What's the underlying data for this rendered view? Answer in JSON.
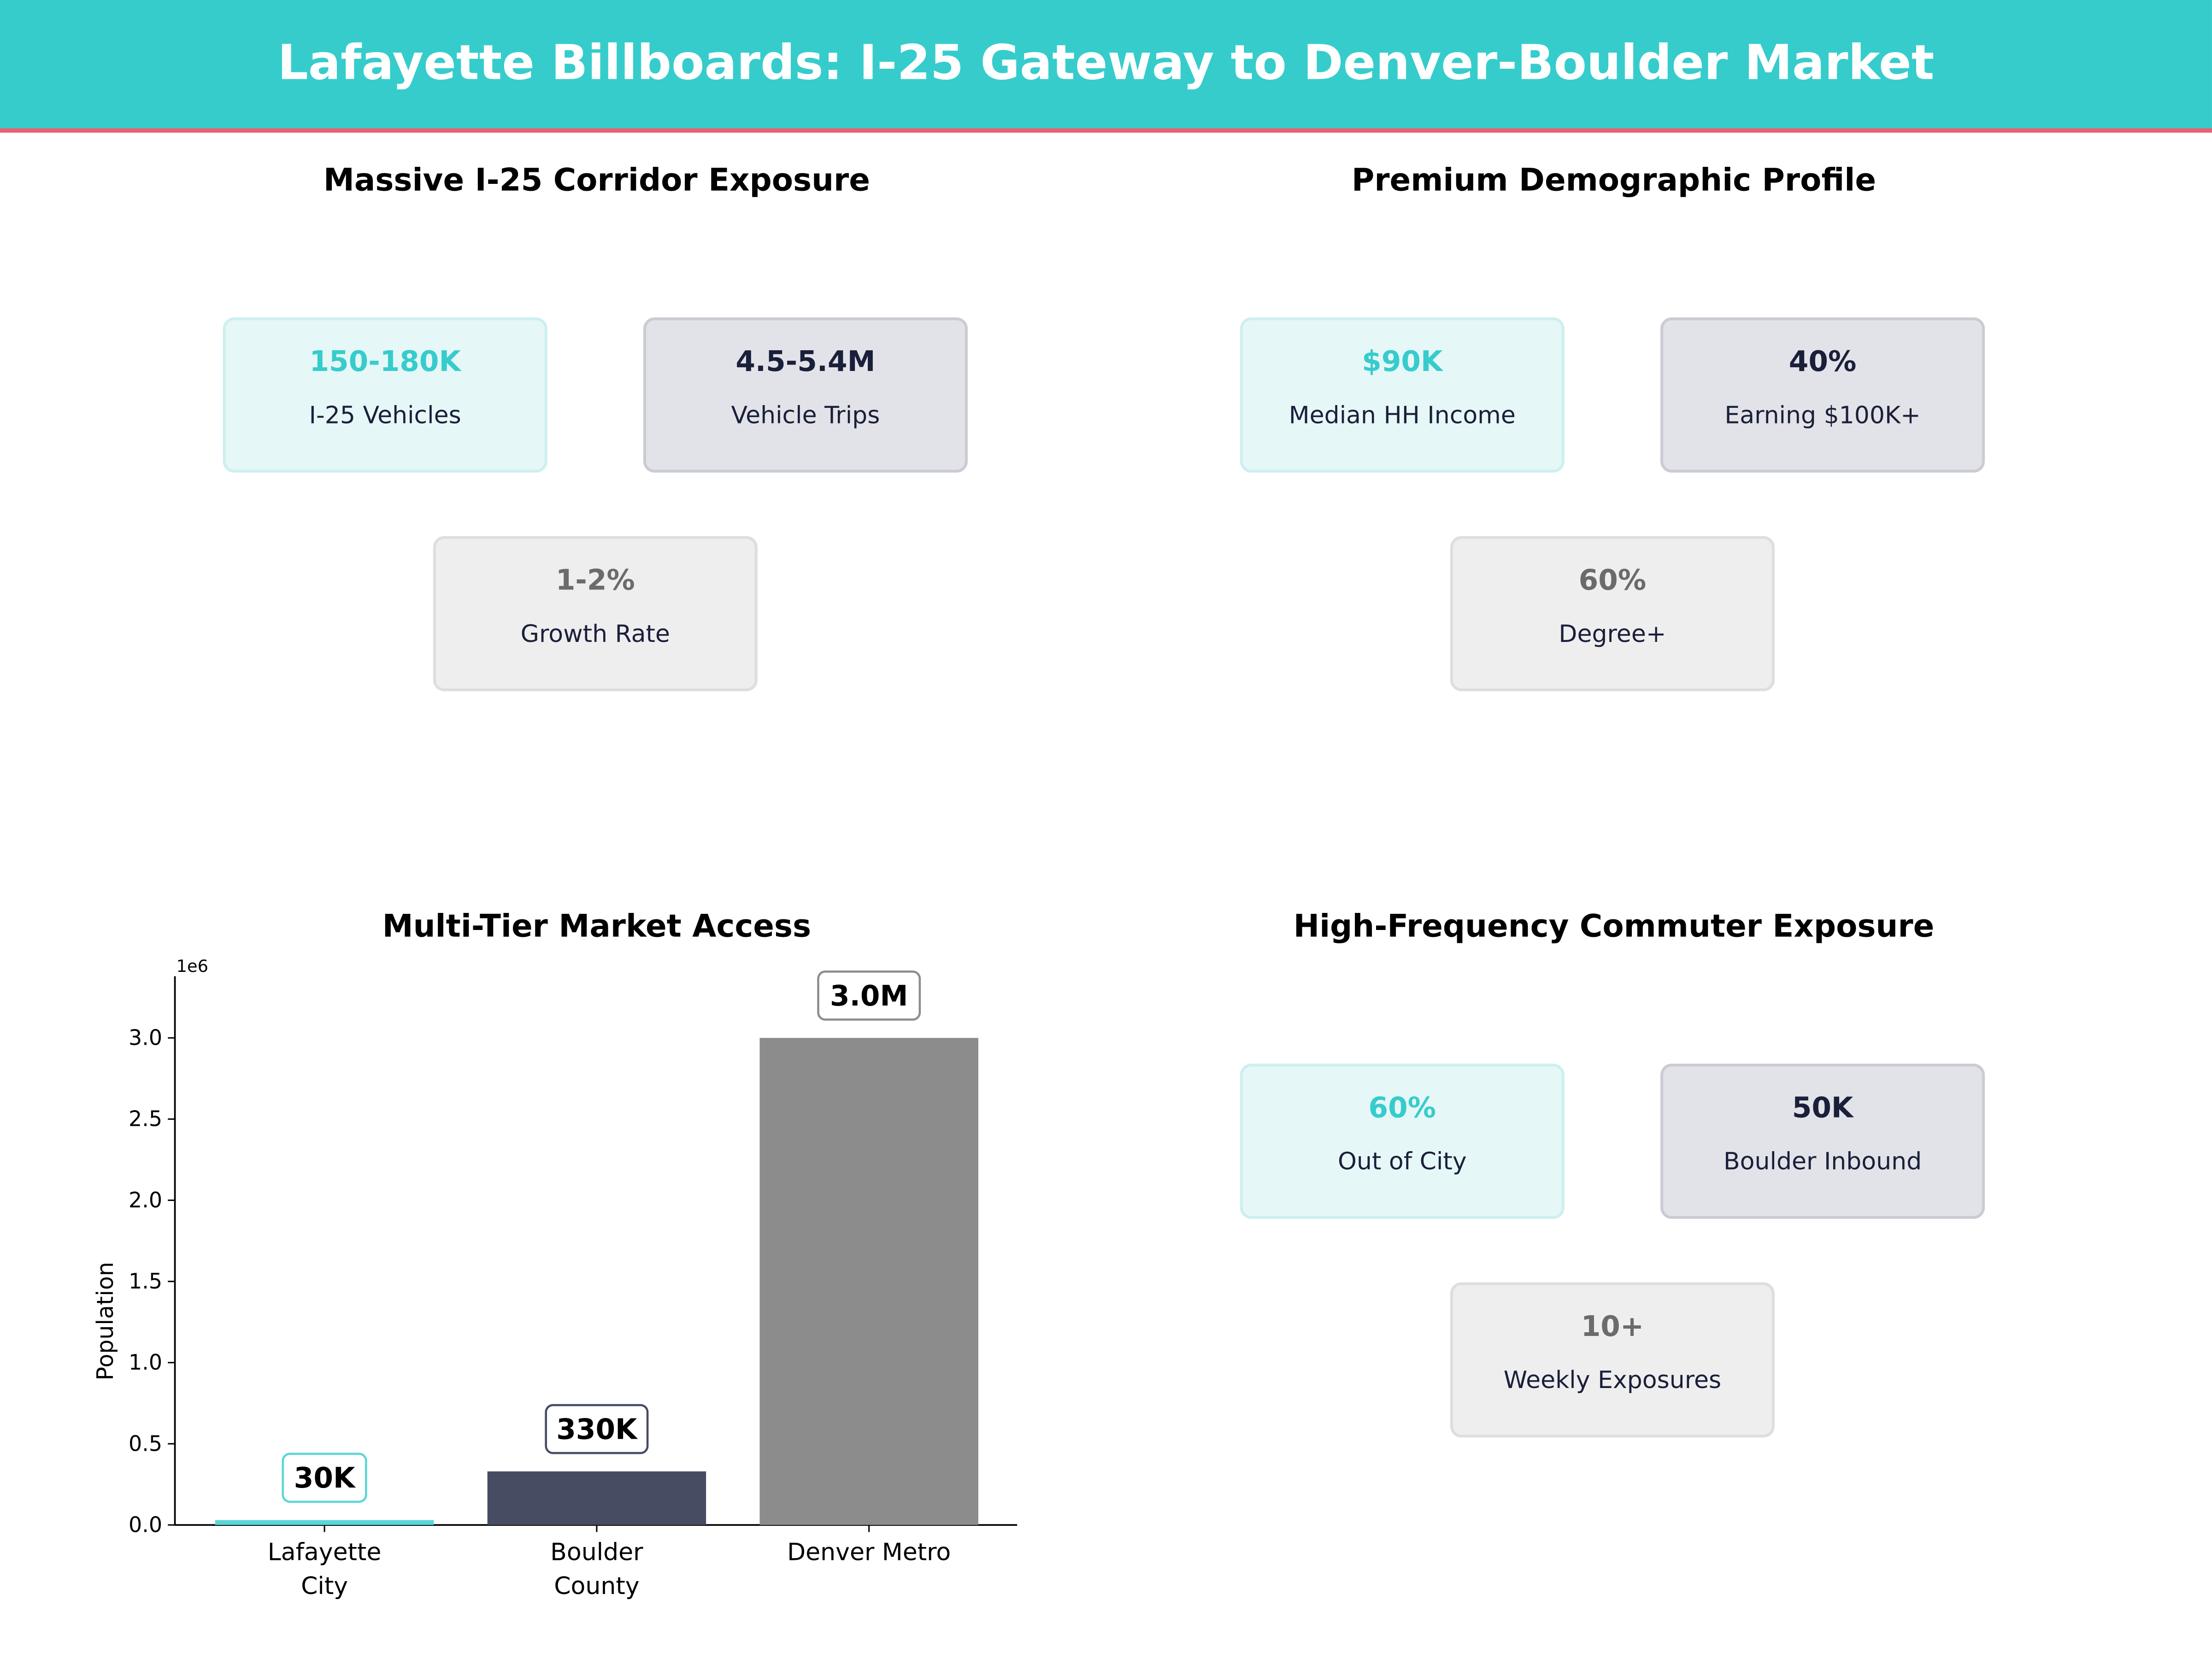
{
  "header": {
    "title": "Lafayette Billboards: I-25 Gateway to Denver-Boulder Market",
    "colors": {
      "primary": "#36cccc",
      "accent": "#ee5f6f",
      "dark": "#1a1f3a",
      "gray": "#6b6b6b"
    }
  },
  "panels": [
    {
      "title": "Massive I-25 Corridor Exposure",
      "cards": [
        {
          "value": "150-180K",
          "label": "I-25 Vehicles"
        },
        {
          "value": "4.5-5.4M",
          "label": "Vehicle Trips"
        },
        {
          "value": "1-2%",
          "label": "Growth Rate"
        }
      ]
    },
    {
      "title": "Premium Demographic Profile",
      "cards": [
        {
          "value": "$90K",
          "label": "Median HH Income"
        },
        {
          "value": "40%",
          "label": "Earning $100K+"
        },
        {
          "value": "60%",
          "label": "Degree+"
        }
      ]
    },
    {
      "title": "High-Frequency Commuter Exposure",
      "cards": [
        {
          "value": "60%",
          "label": "Out of City"
        },
        {
          "value": "50K",
          "label": "Boulder Inbound"
        },
        {
          "value": "10+",
          "label": "Weekly Exposures"
        }
      ]
    }
  ],
  "chart_data": {
    "type": "bar",
    "title": "Multi-Tier Market Access",
    "categories": [
      "Lafayette\nCity",
      "Boulder\nCounty",
      "Denver Metro"
    ],
    "values": [
      30000,
      330000,
      3000000
    ],
    "data_labels": [
      "30K",
      "330K",
      "3.0M"
    ],
    "colors": [
      "#5ad6d6",
      "#474c63",
      "#8c8c8c"
    ],
    "label_border_colors": [
      "#5ad6d6",
      "#474c63",
      "#8c8c8c"
    ],
    "xlabel": "",
    "ylabel": "Population",
    "y_offset_text": "1e6",
    "yticks": [
      "0.0",
      "0.5",
      "1.0",
      "1.5",
      "2.0",
      "2.5",
      "3.0"
    ],
    "ytick_values": [
      0,
      0.5,
      1.0,
      1.5,
      2.0,
      2.5,
      3.0
    ],
    "ylim": [
      0,
      3.38
    ],
    "grid": false
  }
}
